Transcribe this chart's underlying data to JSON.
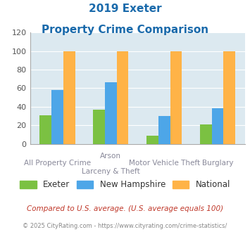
{
  "title_line1": "2019 Exeter",
  "title_line2": "Property Crime Comparison",
  "category_labels_line1": [
    "All Property Crime",
    "Arson",
    "Motor Vehicle Theft",
    "Burglary"
  ],
  "category_labels_line2": [
    "",
    "Larceny & Theft",
    "",
    ""
  ],
  "exeter": [
    31,
    37,
    9,
    21
  ],
  "new_hampshire": [
    58,
    66,
    30,
    38
  ],
  "national": [
    100,
    100,
    100,
    100
  ],
  "exeter_color": "#7bc142",
  "nh_color": "#4da6e8",
  "national_color": "#ffb347",
  "bg_color": "#dce9f0",
  "ylim": [
    0,
    120
  ],
  "yticks": [
    0,
    20,
    40,
    60,
    80,
    100,
    120
  ],
  "legend_labels": [
    "Exeter",
    "New Hampshire",
    "National"
  ],
  "footnote1": "Compared to U.S. average. (U.S. average equals 100)",
  "footnote2": "© 2025 CityRating.com - https://www.cityrating.com/crime-statistics/",
  "title_color": "#1a6aab",
  "footnote1_color": "#c0392b",
  "footnote2_color": "#888888",
  "label_color": "#888899"
}
